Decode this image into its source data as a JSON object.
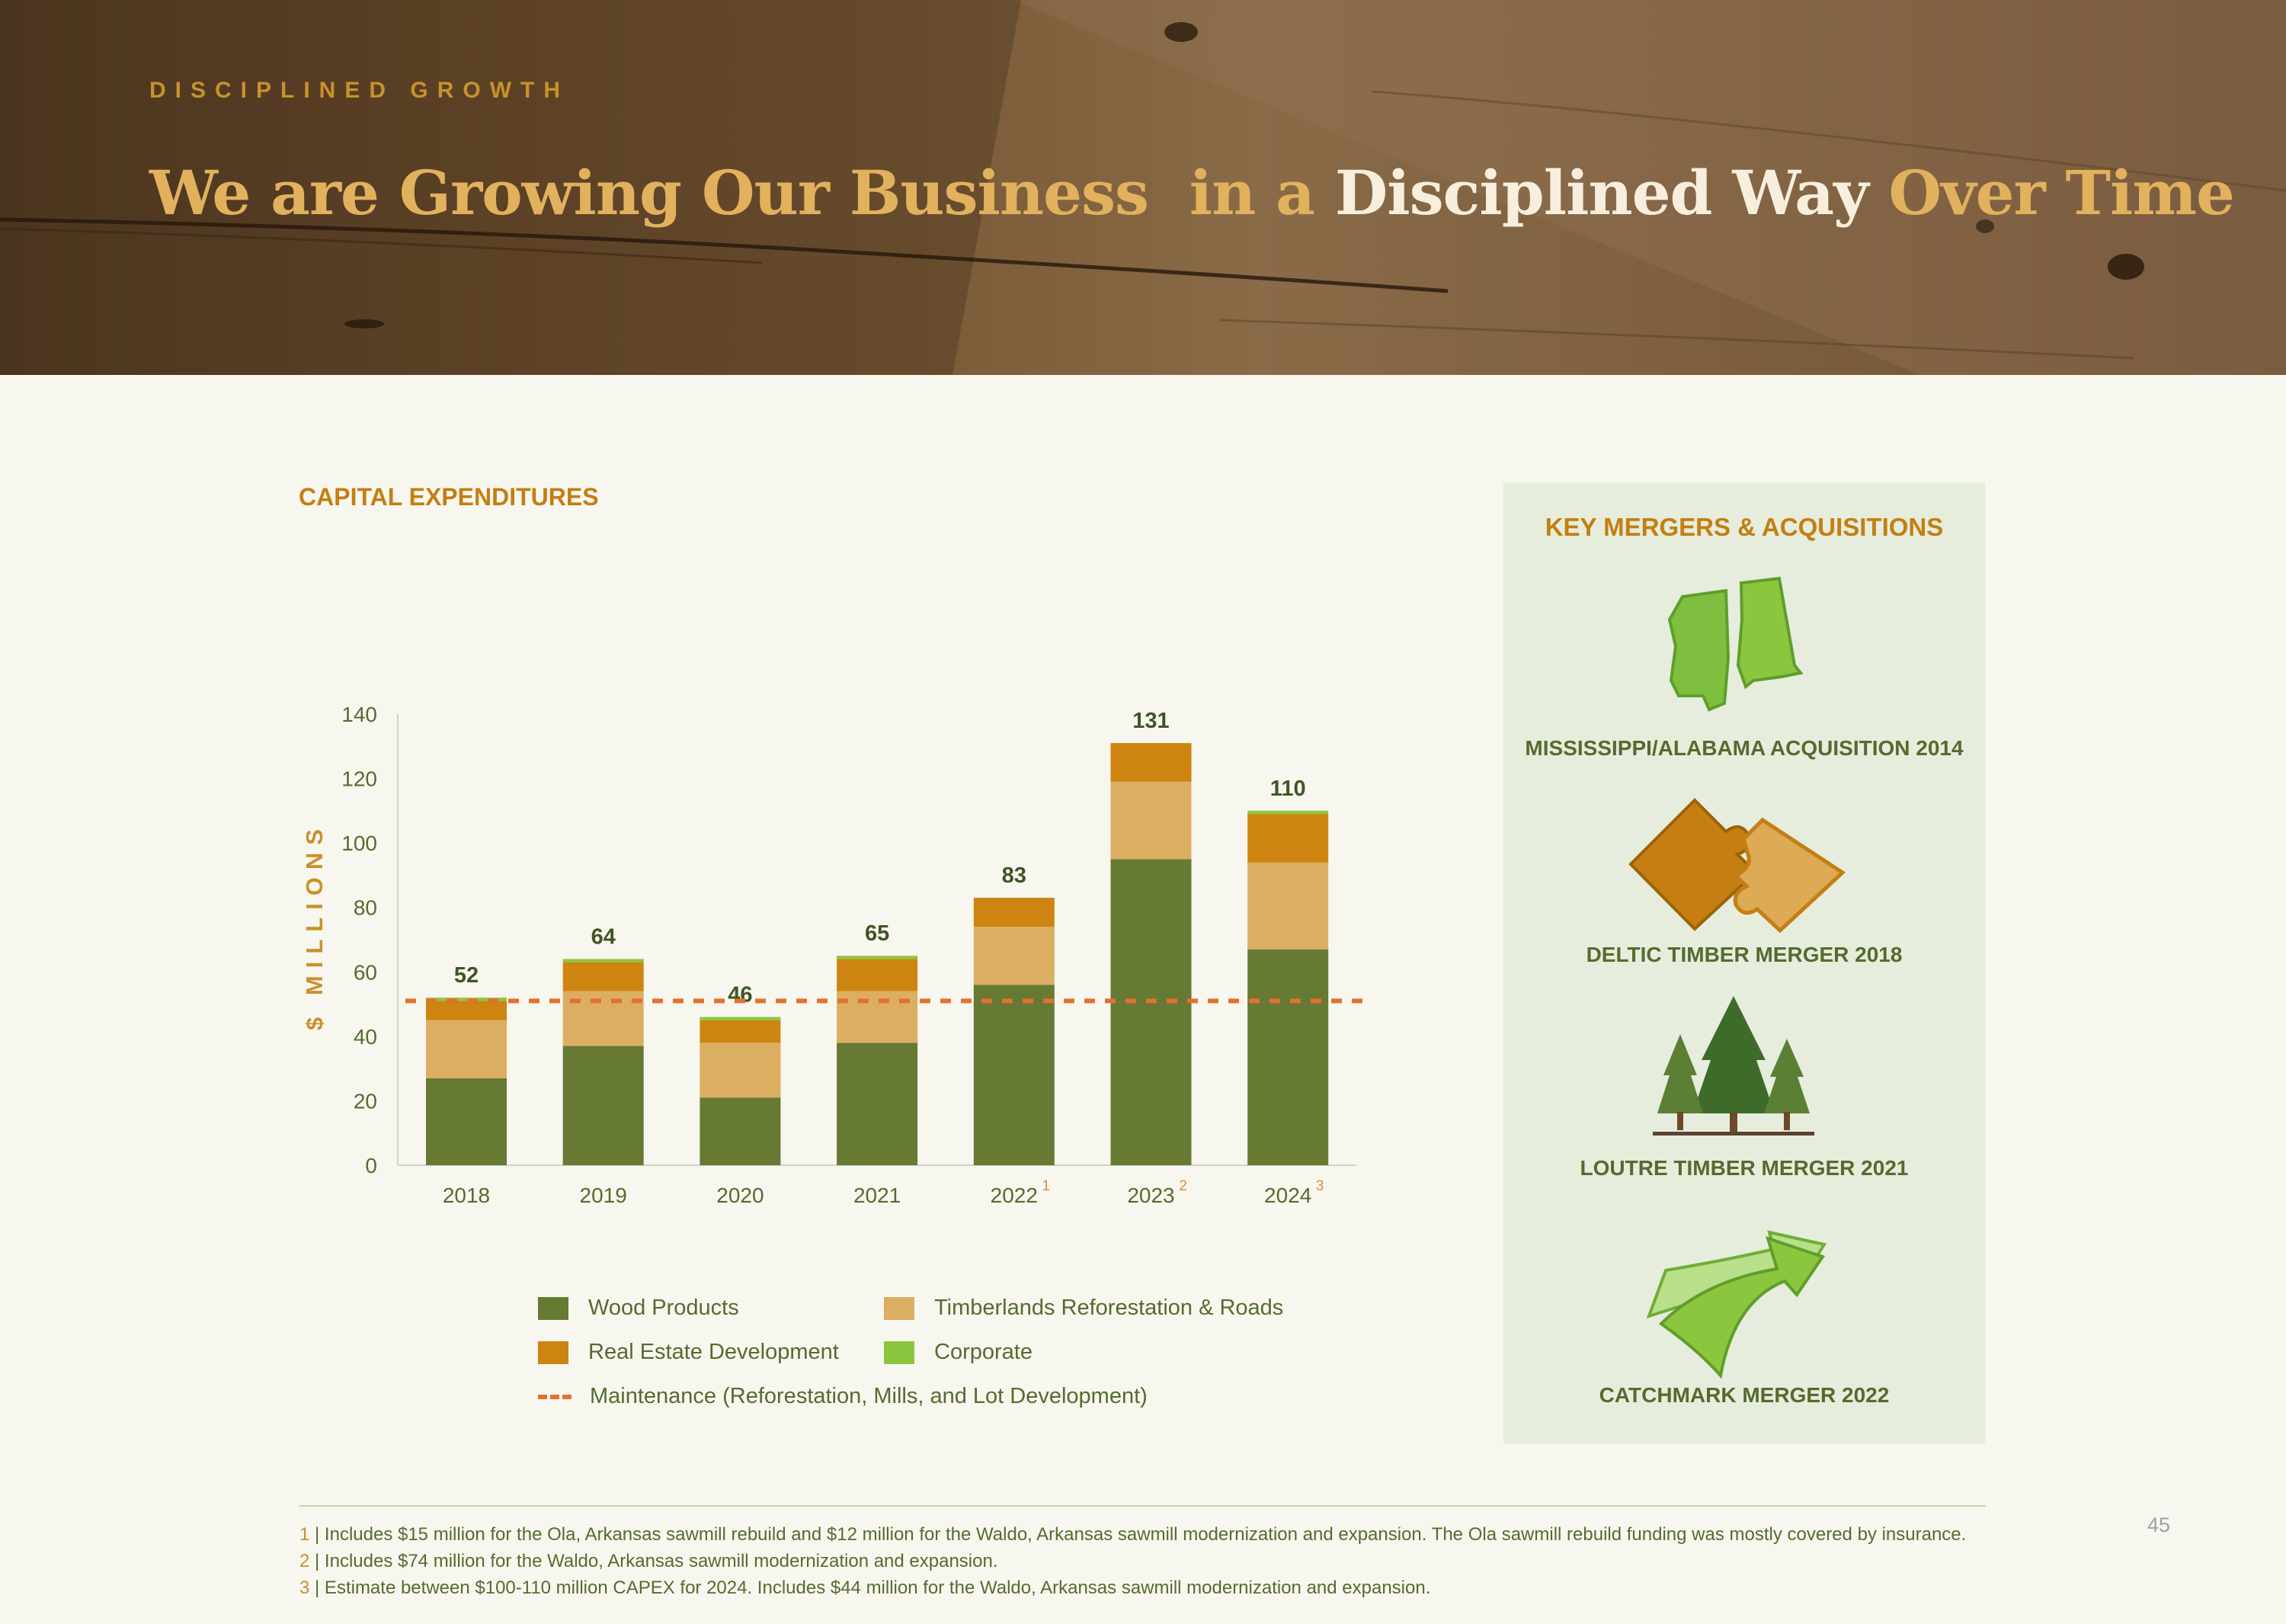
{
  "header": {
    "kicker": "DISCIPLINED GROWTH",
    "title_parts": [
      "We are Growing Our Business",
      "in a",
      "Disciplined Way",
      "Over Time"
    ]
  },
  "chart_title": "CAPITAL EXPENDITURES",
  "chart_data": {
    "type": "bar",
    "stacked": true,
    "categories": [
      "2018",
      "2019",
      "2020",
      "2021",
      "2022",
      "2023",
      "2024"
    ],
    "category_superscripts": [
      "",
      "",
      "",
      "",
      "1",
      "2",
      "3"
    ],
    "ylabel": "$ MILLIONS",
    "ylim": [
      0,
      140
    ],
    "yticks": [
      0,
      20,
      40,
      60,
      80,
      100,
      120,
      140
    ],
    "series": [
      {
        "name": "Wood Products",
        "color": "#667a33",
        "values": [
          27,
          37,
          21,
          38,
          56,
          95,
          67
        ]
      },
      {
        "name": "Timberlands Reforestation & Roads",
        "color": "#dcae62",
        "values": [
          18,
          17,
          17,
          16,
          18,
          24,
          27
        ]
      },
      {
        "name": "Real Estate Development",
        "color": "#cd8410",
        "values": [
          6,
          9,
          7,
          10,
          9,
          12,
          15
        ]
      },
      {
        "name": "Corporate",
        "color": "#8cc63f",
        "values": [
          1,
          1,
          1,
          1,
          0,
          0,
          1
        ]
      }
    ],
    "totals": [
      52,
      64,
      46,
      65,
      83,
      131,
      110
    ],
    "reference_line": {
      "name": "Maintenance (Reforestation, Mills, and Lot Development)",
      "value": 51,
      "color": "#e4702f",
      "style": "dashed"
    },
    "legend_position": "bottom",
    "grid": false
  },
  "legend": {
    "wood": "Wood Products",
    "timber": "Timberlands Reforestation & Roads",
    "realestate": "Real Estate Development",
    "corporate": "Corporate",
    "maintenance": "Maintenance (Reforestation, Mills, and Lot Development)"
  },
  "colors": {
    "accent_gold": "#c47e12",
    "olive": "#556b2f",
    "maintenance": "#e4702f",
    "panel_bg": "#e6eddc"
  },
  "panel": {
    "title": "KEY MERGERS & ACQUISITIONS",
    "deals": [
      {
        "label": "MISSISSIPPI/ALABAMA ACQUISITION  2014",
        "icon": "states-map-icon"
      },
      {
        "label": "DELTIC TIMBER MERGER  2018",
        "icon": "puzzle-icon"
      },
      {
        "label": "LOUTRE TIMBER MERGER  2021",
        "icon": "trees-icon"
      },
      {
        "label": "CATCHMARK MERGER  2022",
        "icon": "merge-arrow-icon"
      }
    ]
  },
  "footnotes": [
    {
      "num": "1",
      "text": " | Includes $15 million for the Ola, Arkansas sawmill rebuild and $12 million for the Waldo, Arkansas sawmill modernization and expansion. The Ola sawmill rebuild funding was mostly covered by insurance."
    },
    {
      "num": "2",
      "text": " | Includes $74 million for the Waldo, Arkansas sawmill modernization and expansion."
    },
    {
      "num": "3",
      "text": " | Estimate between $100-110 million CAPEX for 2024. Includes $44 million for the Waldo, Arkansas sawmill modernization and expansion."
    }
  ],
  "page_number": "45"
}
